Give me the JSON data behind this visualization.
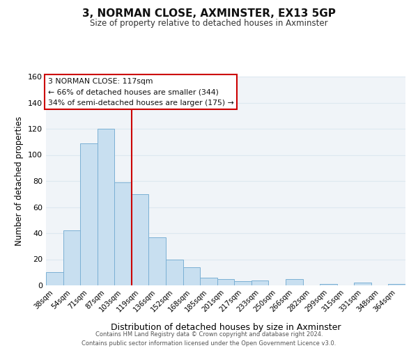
{
  "title": "3, NORMAN CLOSE, AXMINSTER, EX13 5GP",
  "subtitle": "Size of property relative to detached houses in Axminster",
  "xlabel": "Distribution of detached houses by size in Axminster",
  "ylabel": "Number of detached properties",
  "bar_labels": [
    "38sqm",
    "54sqm",
    "71sqm",
    "87sqm",
    "103sqm",
    "119sqm",
    "136sqm",
    "152sqm",
    "168sqm",
    "185sqm",
    "201sqm",
    "217sqm",
    "233sqm",
    "250sqm",
    "266sqm",
    "282sqm",
    "299sqm",
    "315sqm",
    "331sqm",
    "348sqm",
    "364sqm"
  ],
  "bar_values": [
    10,
    42,
    109,
    120,
    79,
    70,
    37,
    20,
    14,
    6,
    5,
    3,
    4,
    0,
    5,
    0,
    1,
    0,
    2,
    0,
    1
  ],
  "bar_color": "#c8dff0",
  "bar_edge_color": "#7ab0d4",
  "vline_color": "#cc0000",
  "ylim": [
    0,
    160
  ],
  "yticks": [
    0,
    20,
    40,
    60,
    80,
    100,
    120,
    140,
    160
  ],
  "annotation_title": "3 NORMAN CLOSE: 117sqm",
  "annotation_line1": "← 66% of detached houses are smaller (344)",
  "annotation_line2": "34% of semi-detached houses are larger (175) →",
  "annotation_box_color": "#ffffff",
  "annotation_box_edge": "#cc0000",
  "footer_line1": "Contains HM Land Registry data © Crown copyright and database right 2024.",
  "footer_line2": "Contains public sector information licensed under the Open Government Licence v3.0.",
  "grid_color": "#dde8f0",
  "background_color": "#f0f4f8",
  "fig_background": "#ffffff"
}
